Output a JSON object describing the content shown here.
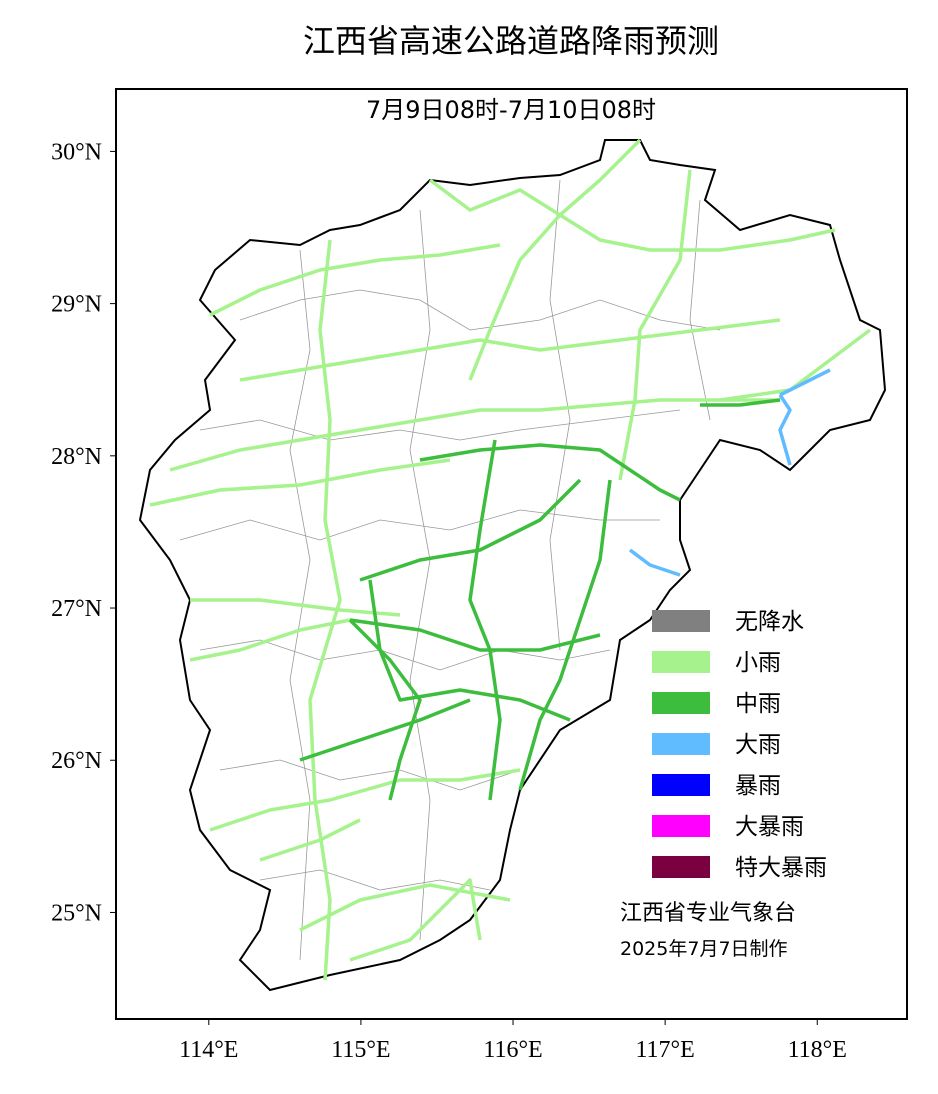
{
  "title": "江西省高速公路道路降雨预测",
  "map": {
    "subtitle": "7月9日08时-7月10日08时",
    "xlim": [
      113.39,
      118.59
    ],
    "ylim": [
      24.3,
      30.41
    ],
    "xticks": [
      {
        "value": 114,
        "label": "114°E"
      },
      {
        "value": 115,
        "label": "115°E"
      },
      {
        "value": 116,
        "label": "116°E"
      },
      {
        "value": 117,
        "label": "117°E"
      },
      {
        "value": 118,
        "label": "118°E"
      }
    ],
    "yticks": [
      {
        "value": 25,
        "label": "25°N"
      },
      {
        "value": 26,
        "label": "26°N"
      },
      {
        "value": 27,
        "label": "27°N"
      },
      {
        "value": 28,
        "label": "28°N"
      },
      {
        "value": 29,
        "label": "29°N"
      },
      {
        "value": 30,
        "label": "30°N"
      }
    ],
    "legend": [
      {
        "name": "无降水",
        "color": "#808080"
      },
      {
        "name": "小雨",
        "color": "#a6f28d"
      },
      {
        "name": "中雨",
        "color": "#3dbd3d"
      },
      {
        "name": "大雨",
        "color": "#61bbff"
      },
      {
        "name": "暴雨",
        "color": "#0000ff"
      },
      {
        "name": "大暴雨",
        "color": "#ff00ff"
      },
      {
        "name": "特大暴雨",
        "color": "#7b0040"
      }
    ],
    "credit": [
      "江西省专业气象台",
      "2025年7月7日制作"
    ]
  }
}
